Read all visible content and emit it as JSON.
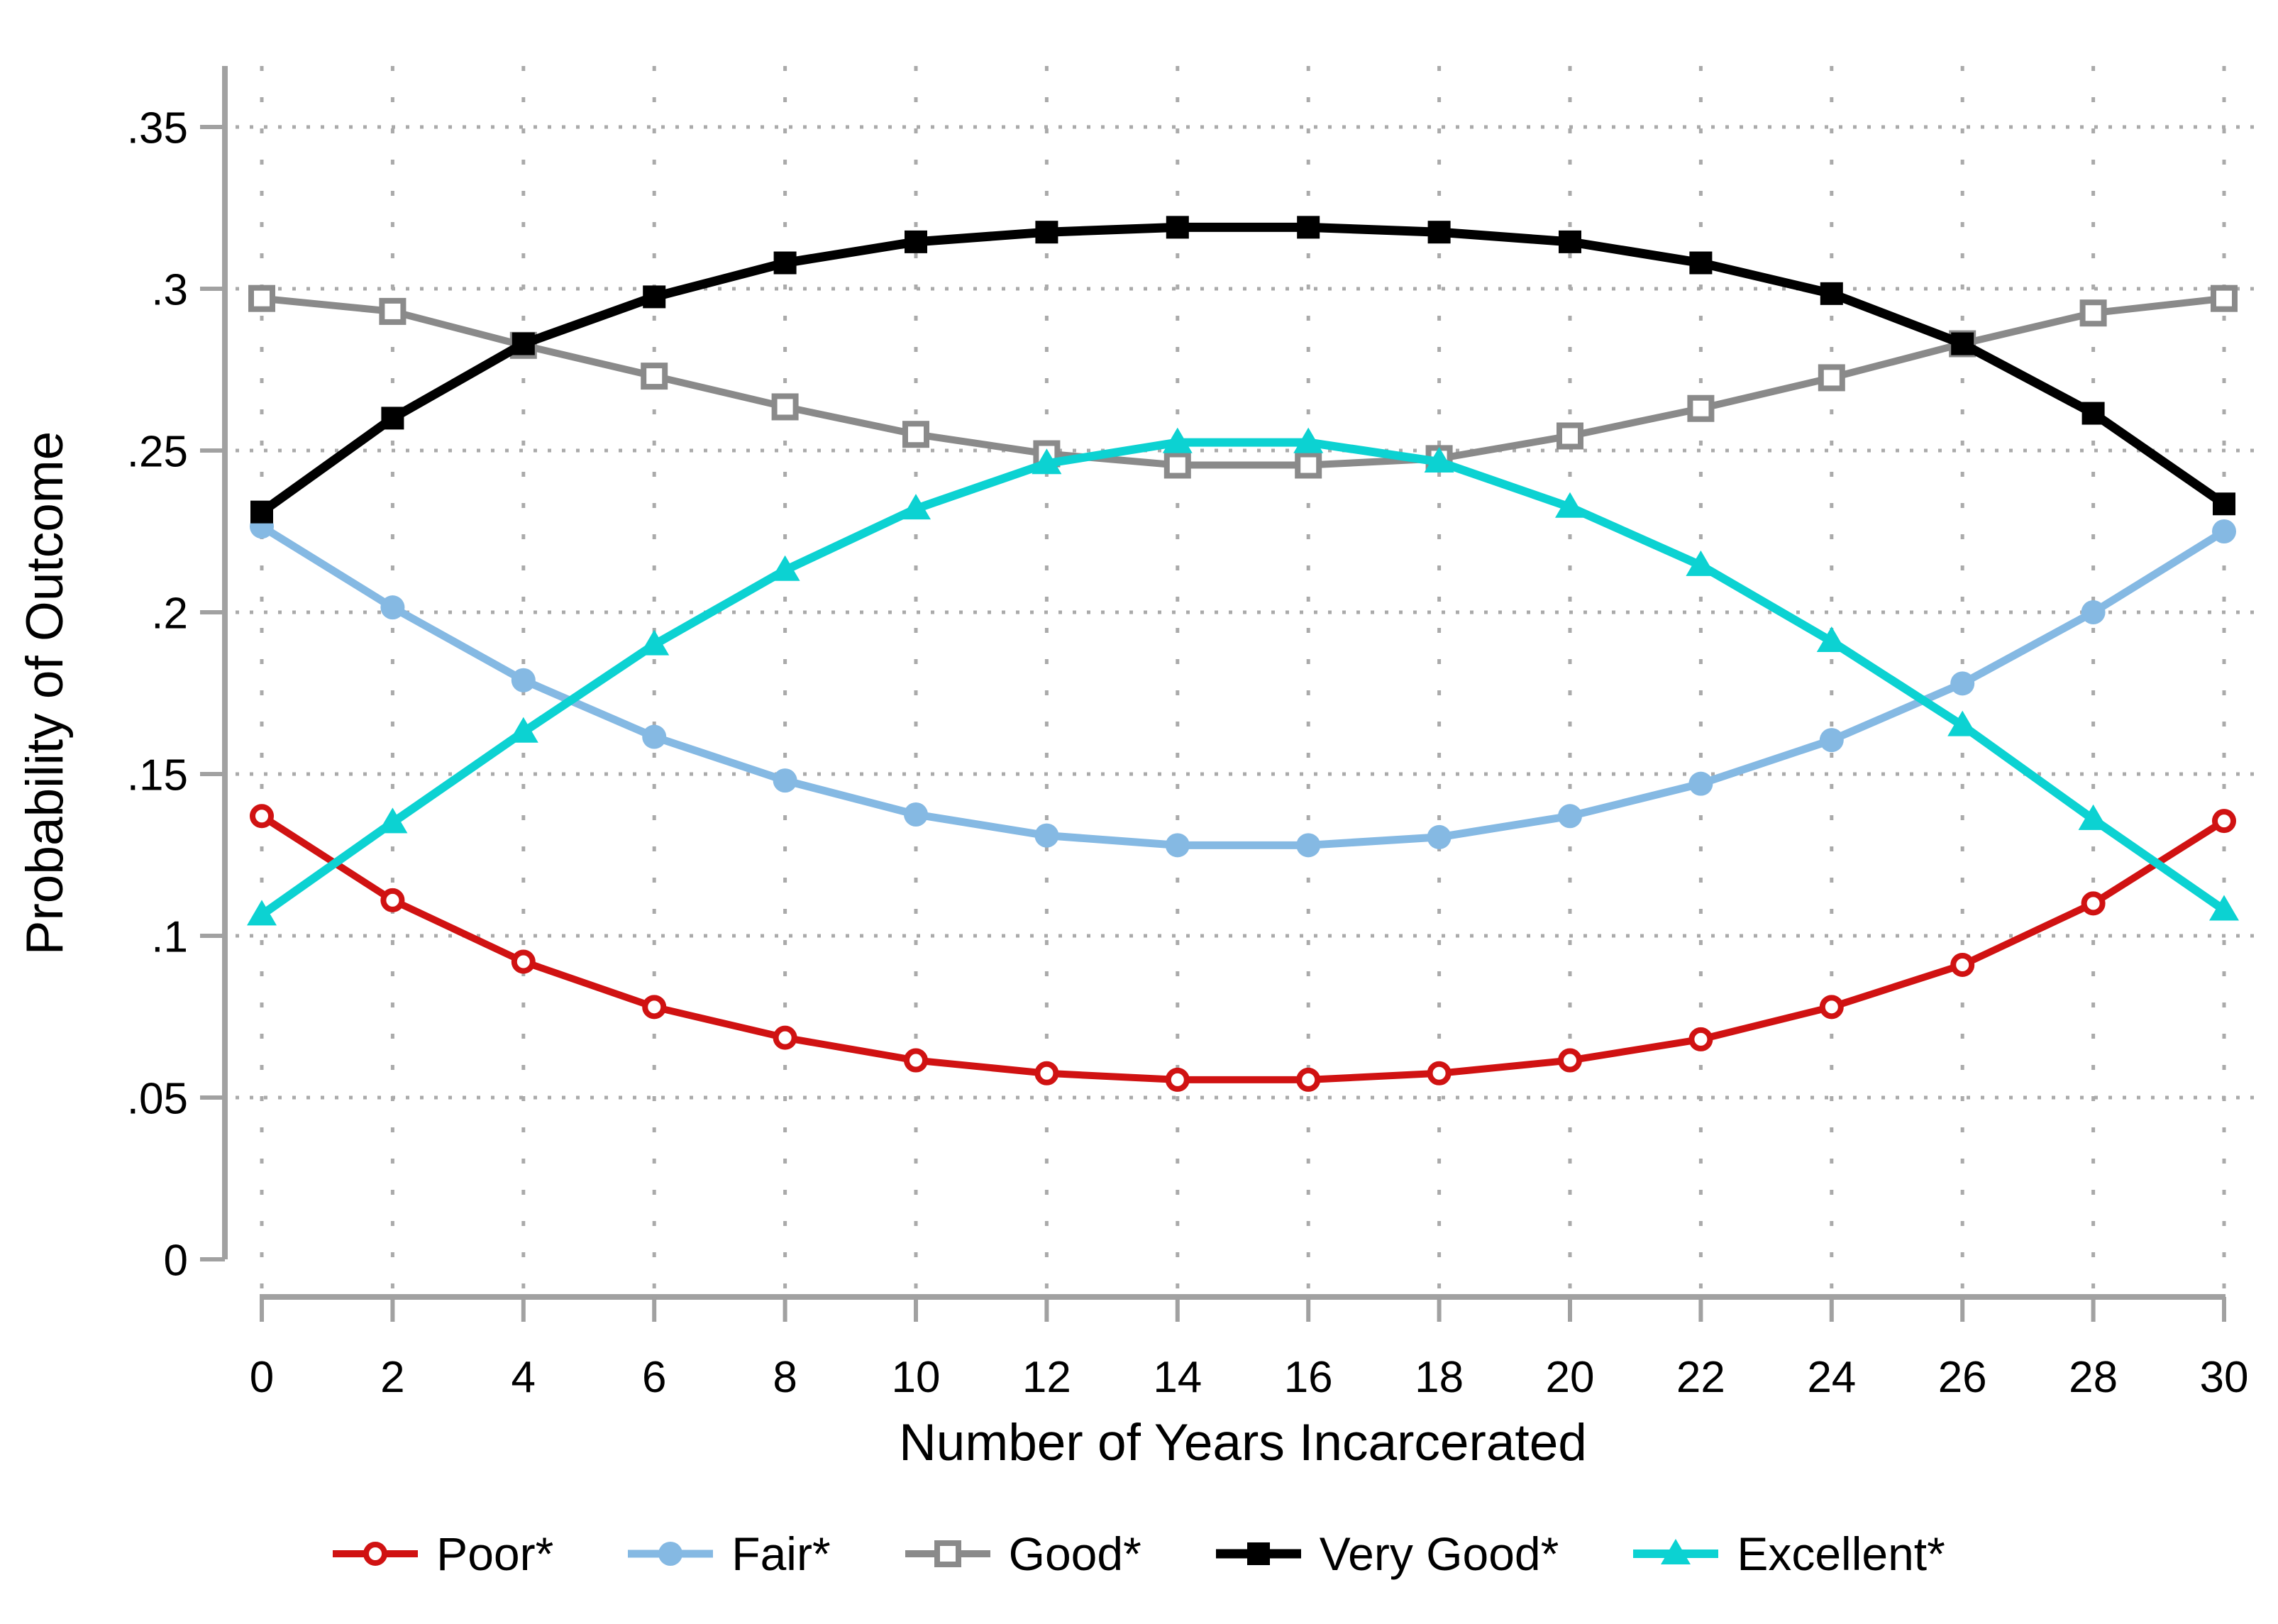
{
  "chart_data": {
    "type": "line",
    "title": "",
    "xlabel": "Number of Years Incarcerated",
    "ylabel": "Probability of Outcome",
    "x": [
      0,
      2,
      4,
      6,
      8,
      10,
      12,
      14,
      16,
      18,
      20,
      22,
      24,
      26,
      28,
      30
    ],
    "x_tick_labels": [
      "0",
      "2",
      "4",
      "6",
      "8",
      "10",
      "12",
      "14",
      "16",
      "18",
      "20",
      "22",
      "24",
      "26",
      "28",
      "30"
    ],
    "y_ticks": [
      0,
      0.05,
      0.1,
      0.15,
      0.2,
      0.25,
      0.3,
      0.35
    ],
    "y_tick_labels": [
      "0",
      ".05",
      ".1",
      ".15",
      ".2",
      ".25",
      ".3",
      ".35"
    ],
    "ylim": [
      0,
      0.37
    ],
    "grid": "dotted-both-axes",
    "legend_position": "bottom",
    "series": [
      {
        "name": "Poor*",
        "color": "#d01212",
        "marker": "open-circle",
        "values": [
          0.137,
          0.111,
          0.092,
          0.078,
          0.0685,
          0.0615,
          0.0575,
          0.0555,
          0.0555,
          0.0575,
          0.0615,
          0.068,
          0.078,
          0.091,
          0.11,
          0.1355
        ]
      },
      {
        "name": "Fair*",
        "color": "#85b9e3",
        "marker": "filled-circle",
        "values": [
          0.2265,
          0.2015,
          0.179,
          0.1615,
          0.148,
          0.1375,
          0.131,
          0.128,
          0.128,
          0.1305,
          0.137,
          0.147,
          0.1605,
          0.178,
          0.2,
          0.225
        ]
      },
      {
        "name": "Good*",
        "color": "#8a8a8a",
        "marker": "open-square",
        "values": [
          0.297,
          0.293,
          0.2825,
          0.273,
          0.2635,
          0.255,
          0.249,
          0.2455,
          0.2455,
          0.2475,
          0.2545,
          0.263,
          0.2725,
          0.283,
          0.2925,
          0.297
        ]
      },
      {
        "name": "Very Good*",
        "color": "#000000",
        "marker": "filled-square",
        "values": [
          0.231,
          0.26,
          0.283,
          0.2975,
          0.308,
          0.3145,
          0.3175,
          0.319,
          0.319,
          0.3175,
          0.3145,
          0.308,
          0.2985,
          0.283,
          0.2615,
          0.2335
        ]
      },
      {
        "name": "Excellent*",
        "color": "#0cd2d2",
        "marker": "filled-triangle",
        "values": [
          0.1065,
          0.135,
          0.163,
          0.19,
          0.213,
          0.232,
          0.246,
          0.2525,
          0.2525,
          0.2465,
          0.2325,
          0.2145,
          0.191,
          0.165,
          0.136,
          0.108
        ]
      }
    ]
  },
  "colors": {
    "background": "#ffffff",
    "axis_line": "#a1a1a1",
    "grid_dots": "#aaaaaa",
    "text": "#000000"
  }
}
